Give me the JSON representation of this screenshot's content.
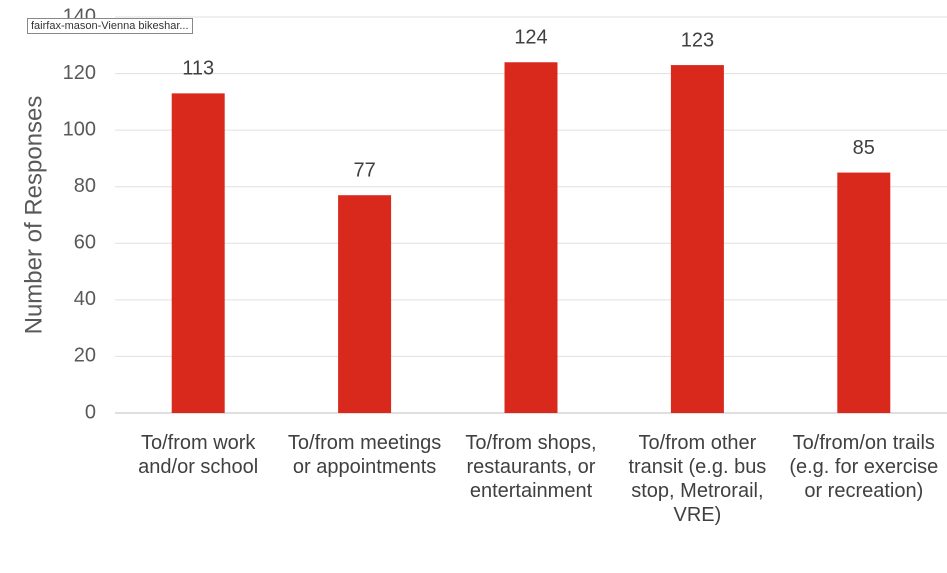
{
  "tooltip": "fairfax-mason-Vienna bikeshar...",
  "chart_data": {
    "type": "bar",
    "y_label": "Number of Responses",
    "categories": [
      "To/from work and/or school",
      "To/from meetings or appointments",
      "To/from shops, restaurants, or entertainment",
      "To/from other transit (e.g. bus stop, Metrorail, VRE)",
      "To/from/on trails (e.g. for exercise or recreation)"
    ],
    "values": [
      113,
      77,
      124,
      123,
      85
    ],
    "color": "#d9291c",
    "ylim": [
      0,
      140
    ],
    "yticks": [
      0,
      20,
      40,
      60,
      80,
      100,
      120,
      140
    ],
    "grid": true,
    "data_labels": true
  }
}
